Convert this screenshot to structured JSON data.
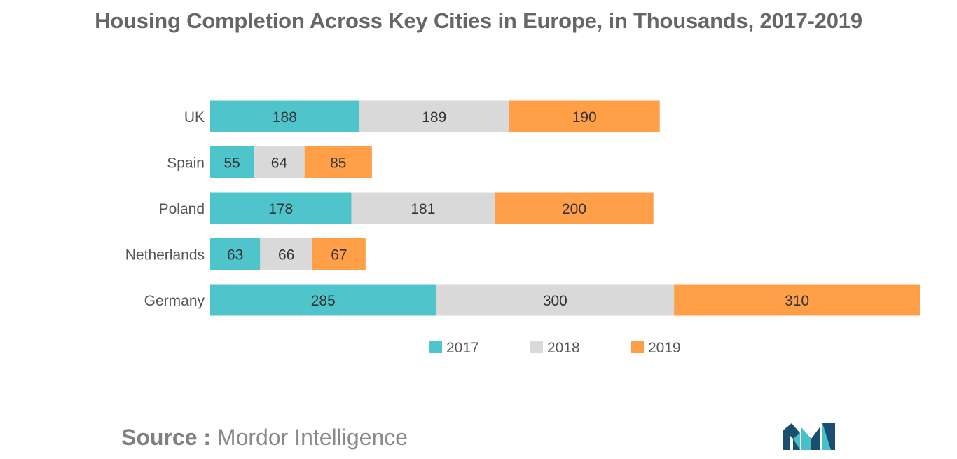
{
  "chart_data": {
    "type": "bar",
    "orientation": "horizontal",
    "stacked": true,
    "title": "Housing Completion Across Key Cities in Europe, in Thousands, 2017-2019",
    "categories": [
      "UK",
      "Spain",
      "Poland",
      "Netherlands",
      "Germany"
    ],
    "series": [
      {
        "name": "2017",
        "color": "#4fc4cb",
        "values": [
          188,
          55,
          178,
          63,
          285
        ]
      },
      {
        "name": "2018",
        "color": "#d9d9d9",
        "values": [
          189,
          64,
          181,
          66,
          300
        ]
      },
      {
        "name": "2019",
        "color": "#ff9f47",
        "values": [
          190,
          85,
          200,
          67,
          310
        ]
      }
    ],
    "xlabel": "",
    "ylabel": "",
    "xlim": [
      0,
      895
    ],
    "grid": false,
    "data_labels": true,
    "legend_position": "bottom-center"
  },
  "footer": {
    "source_label": "Source :",
    "source_text": "Mordor Intelligence"
  },
  "colors": {
    "text": "#555555",
    "title": "#666666",
    "logo_dark": "#1b4f6f",
    "logo_light": "#49bfc9"
  }
}
